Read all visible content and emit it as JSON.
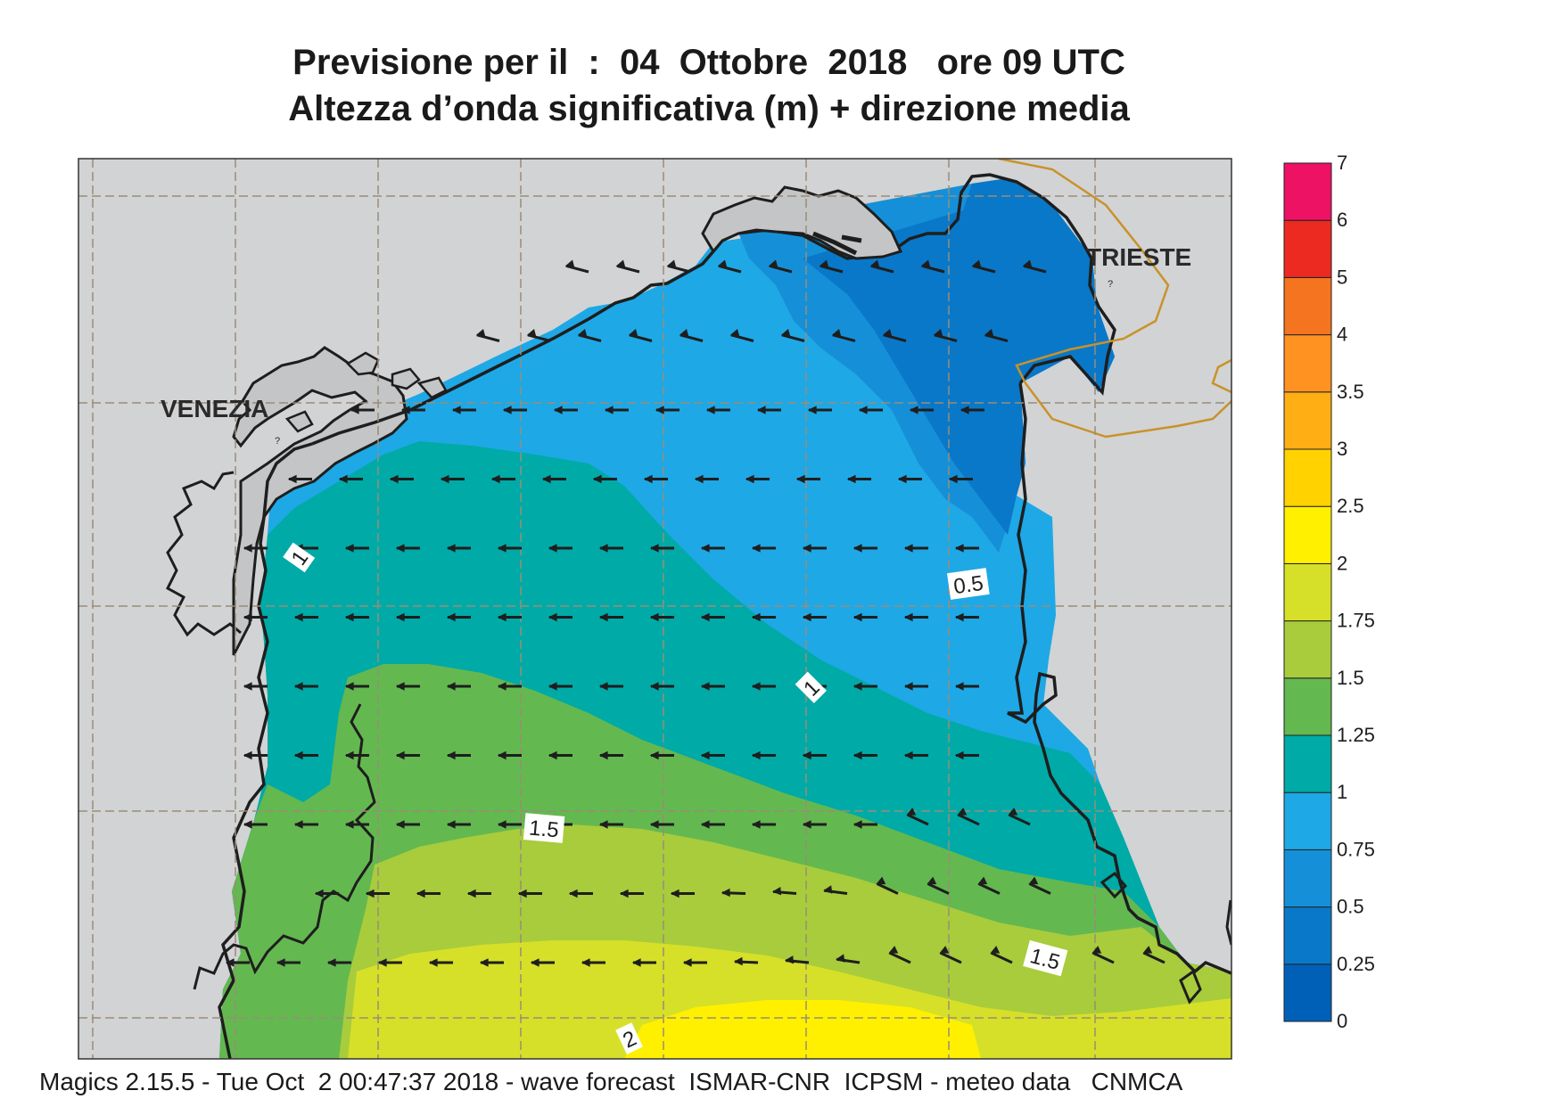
{
  "title_line1": "Previsione per il  :  04  Ottobre  2018   ore 09 UTC",
  "title_line2": "Altezza d’onda significativa (m) + direzione media",
  "footer": "Magics 2.15.5 - Tue Oct  2 00:47:37 2018 - wave forecast  ISMAR-CNR  ICPSM - meteo data   CNMCA",
  "places": [
    {
      "name": "VENEZIA"
    },
    {
      "name": "TRIESTE"
    }
  ],
  "contour_labels": [
    "0.5",
    "1",
    "1",
    "1.5",
    "1.5",
    "2"
  ],
  "legend": {
    "unit": "m",
    "levels": [
      "0",
      "0.25",
      "0.5",
      "0.75",
      "1",
      "1.25",
      "1.5",
      "1.75",
      "2",
      "2.5",
      "3",
      "3.5",
      "4",
      "5",
      "6",
      "7"
    ],
    "colors": [
      "#0060b8",
      "#0a78c8",
      "#1590d8",
      "#1ea8e6",
      "#00aaa6",
      "#64b850",
      "#a8cc3c",
      "#d6e028",
      "#fff000",
      "#ffd200",
      "#ffae14",
      "#ff9220",
      "#f47420",
      "#ec2a22",
      "#ee1265"
    ]
  },
  "colors": {
    "land": "#d2d3d4",
    "coast": "#1e1e1e",
    "border": "#c8922a",
    "grid": "#9a8c78",
    "arrows": "#1e1e1e"
  },
  "wave_direction": "from east toward west, veering to south-west in the south-east sector"
}
